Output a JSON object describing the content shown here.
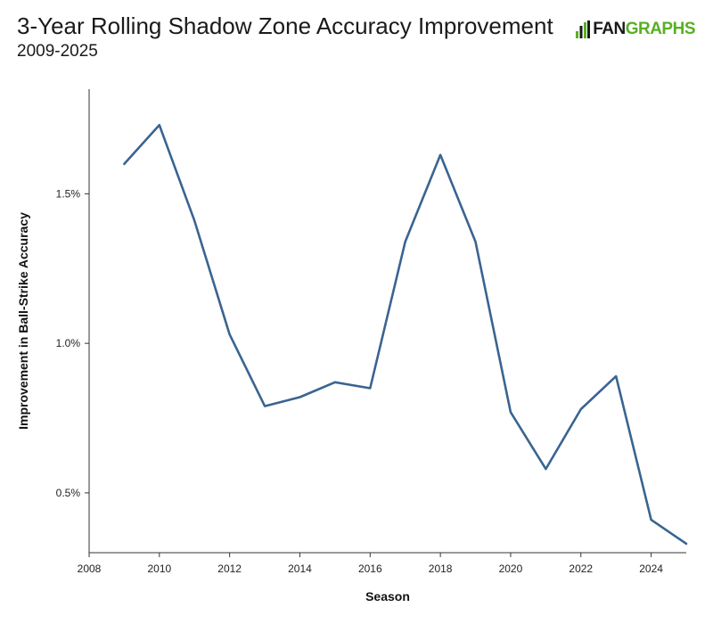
{
  "header": {
    "title": "3-Year Rolling Shadow Zone Accuracy Improvement",
    "subtitle": "2009-2025"
  },
  "logo": {
    "text_fan": "FAN",
    "text_graphs": "GRAPHS",
    "icon": "fangraphs-bars-icon",
    "colors": {
      "green": "#58b024",
      "dark": "#1a1a1a"
    }
  },
  "chart_data": {
    "type": "line",
    "xlabel": "Season",
    "ylabel": "Improvement in Ball-Strike Accuracy",
    "xlim": [
      2008,
      2025
    ],
    "ylim": [
      0.3,
      1.85
    ],
    "x_ticks": [
      2008,
      2010,
      2012,
      2014,
      2016,
      2018,
      2020,
      2022,
      2024
    ],
    "x_tick_labels": [
      "2008",
      "2010",
      "2012",
      "2014",
      "2016",
      "2018",
      "2020",
      "2022",
      "2024"
    ],
    "y_ticks": [
      0.5,
      1.0,
      1.5
    ],
    "y_tick_labels": [
      "0.5%",
      "1.0%",
      "1.5%"
    ],
    "grid": false,
    "line_color": "#3a6491",
    "series": [
      {
        "x": [
          2009,
          2010,
          2011,
          2012,
          2013,
          2014,
          2015,
          2016,
          2017,
          2018,
          2019,
          2020,
          2021,
          2022,
          2023,
          2024,
          2025
        ],
        "values": [
          1.6,
          1.73,
          1.41,
          1.03,
          0.79,
          0.82,
          0.87,
          0.85,
          1.34,
          1.63,
          1.34,
          0.77,
          0.58,
          0.78,
          0.89,
          0.41,
          0.33
        ]
      }
    ]
  }
}
